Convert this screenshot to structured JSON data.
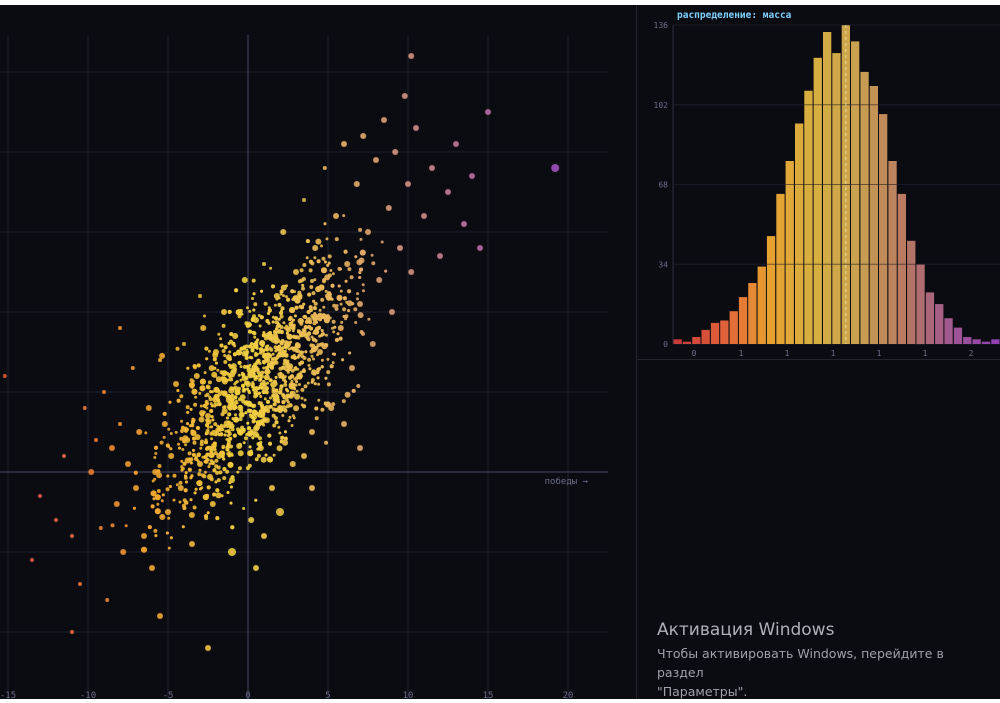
{
  "chart_data": [
    {
      "type": "scatter",
      "x_axis_label": "победы →",
      "x_ticks": [
        -15,
        -10,
        -5,
        0,
        5,
        10,
        15,
        20
      ],
      "xlim": [
        -15.5,
        22.5
      ],
      "ylim": [
        -14,
        27
      ],
      "grid": true,
      "color_scale": [
        "#e0563a",
        "#f0a030",
        "#f0d040",
        "#e8b060",
        "#c07898",
        "#a050c0"
      ],
      "points": [
        [
          -13.5,
          -5.5,
          2
        ],
        [
          -15.2,
          6,
          2
        ],
        [
          -13,
          -1.5,
          2
        ],
        [
          -12,
          -3,
          2
        ],
        [
          -11.5,
          1,
          2
        ],
        [
          -11,
          -4,
          2
        ],
        [
          -10.5,
          -7,
          2
        ],
        [
          -10.2,
          4,
          2
        ],
        [
          -9.8,
          0,
          3
        ],
        [
          -9.5,
          2,
          2
        ],
        [
          -9.2,
          -3.5,
          2
        ],
        [
          -9,
          5,
          2
        ],
        [
          -8.8,
          -8,
          2
        ],
        [
          -8.5,
          1.5,
          3
        ],
        [
          -8.2,
          -2,
          3
        ],
        [
          -8,
          3,
          2
        ],
        [
          -7.8,
          -5,
          3
        ],
        [
          -7.5,
          0.5,
          3
        ],
        [
          -7.2,
          6.5,
          2
        ],
        [
          -7,
          -1,
          3
        ],
        [
          -6.8,
          2.5,
          3
        ],
        [
          -6.5,
          -4,
          3
        ],
        [
          -6.2,
          4,
          3
        ],
        [
          -6,
          -6,
          3
        ],
        [
          -5.8,
          0,
          3
        ],
        [
          -5.5,
          7,
          2
        ],
        [
          -5.2,
          3,
          3
        ],
        [
          -5,
          -2.5,
          3
        ],
        [
          -4.8,
          1,
          3
        ],
        [
          -4.5,
          5.5,
          3
        ],
        [
          -4.2,
          -1,
          3
        ],
        [
          -4,
          8,
          2
        ],
        [
          -3.8,
          2,
          3
        ],
        [
          -3.5,
          -4.5,
          3
        ],
        [
          -3.2,
          6,
          3
        ],
        [
          -3,
          0.5,
          3
        ],
        [
          -2.8,
          9,
          3
        ],
        [
          -2.5,
          3.5,
          3
        ],
        [
          -2.2,
          -2,
          3
        ],
        [
          -2,
          7.5,
          3
        ],
        [
          -1.8,
          1,
          3
        ],
        [
          -1.5,
          10,
          3
        ],
        [
          -1.2,
          4.5,
          3
        ],
        [
          -1,
          -0.5,
          3
        ],
        [
          -0.8,
          8.5,
          3
        ],
        [
          -0.5,
          2.5,
          3
        ],
        [
          -0.2,
          12,
          3
        ],
        [
          0,
          5.5,
          3
        ],
        [
          0.2,
          -3,
          3
        ],
        [
          0.5,
          9.5,
          3
        ],
        [
          0.8,
          1.5,
          3
        ],
        [
          1,
          13,
          2
        ],
        [
          1.2,
          7,
          3
        ],
        [
          1.5,
          -1,
          3
        ],
        [
          1.8,
          11,
          3
        ],
        [
          2,
          4,
          3
        ],
        [
          2.2,
          15,
          3
        ],
        [
          2.5,
          8,
          3
        ],
        [
          2.8,
          0.5,
          3
        ],
        [
          3,
          12.5,
          3
        ],
        [
          3.2,
          6,
          3
        ],
        [
          3.5,
          17,
          2
        ],
        [
          3.8,
          9.5,
          3
        ],
        [
          4,
          2.5,
          3
        ],
        [
          4.2,
          14,
          3
        ],
        [
          4.5,
          7.5,
          3
        ],
        [
          4.8,
          19,
          2
        ],
        [
          5,
          11,
          3
        ],
        [
          5.2,
          4,
          3
        ],
        [
          5.5,
          16,
          3
        ],
        [
          5.8,
          9,
          3
        ],
        [
          6,
          20.5,
          3
        ],
        [
          6.2,
          13,
          3
        ],
        [
          6.5,
          6.5,
          3
        ],
        [
          6.8,
          18,
          3
        ],
        [
          7,
          10.5,
          3
        ],
        [
          7.2,
          21,
          3
        ],
        [
          7.5,
          15,
          3
        ],
        [
          7.8,
          8,
          3
        ],
        [
          8,
          19.5,
          3
        ],
        [
          8.2,
          12,
          3
        ],
        [
          8.5,
          22,
          3
        ],
        [
          8.8,
          16.5,
          3
        ],
        [
          9,
          10,
          3
        ],
        [
          9.2,
          20,
          3
        ],
        [
          9.5,
          14,
          3
        ],
        [
          9.8,
          23.5,
          3
        ],
        [
          10,
          18,
          3
        ],
        [
          10.2,
          12.5,
          3
        ],
        [
          10.5,
          21.5,
          3
        ],
        [
          11,
          16,
          3
        ],
        [
          11.5,
          19,
          3
        ],
        [
          12,
          13.5,
          3
        ],
        [
          12.5,
          17.5,
          3
        ],
        [
          13,
          20.5,
          3
        ],
        [
          13.5,
          15.5,
          3
        ],
        [
          14,
          18.5,
          3
        ],
        [
          14.5,
          14,
          3
        ],
        [
          15,
          22.5,
          3
        ],
        [
          19.2,
          19,
          4
        ],
        [
          10.2,
          26,
          3
        ],
        [
          -2.5,
          -11,
          3
        ],
        [
          -5.5,
          -9,
          3
        ],
        [
          -11,
          -10,
          2
        ],
        [
          -8,
          9,
          2
        ],
        [
          -3,
          11,
          2
        ],
        [
          0.5,
          -6,
          3
        ],
        [
          2,
          -2.5,
          4
        ],
        [
          3.5,
          1,
          3
        ],
        [
          4,
          -1,
          3
        ],
        [
          6,
          3,
          3
        ],
        [
          7,
          1.5,
          3
        ],
        [
          -1,
          -5,
          4
        ],
        [
          1,
          -4,
          3
        ]
      ]
    },
    {
      "type": "bar",
      "title": "распределение: масса",
      "y_ticks": [
        0,
        34,
        68,
        102,
        136
      ],
      "x_tick_labels": [
        "0",
        "1",
        "1",
        "1",
        "1",
        "1",
        "2"
      ],
      "values": [
        2,
        1,
        3,
        6,
        9,
        10,
        14,
        20,
        26,
        33,
        46,
        64,
        78,
        94,
        108,
        122,
        133,
        124,
        136,
        129,
        116,
        110,
        98,
        78,
        64,
        44,
        34,
        22,
        17,
        11,
        7,
        3,
        2,
        1,
        2
      ],
      "mean_line": true,
      "color_scale": [
        "#c83a3a",
        "#e0603a",
        "#e8a030",
        "#d8b040",
        "#c8a050",
        "#b87860",
        "#a05890",
        "#9040b0"
      ]
    }
  ],
  "watermark": {
    "title": "Активация Windows",
    "line1": "Чтобы активировать Windows, перейдите в раздел",
    "line2": "\"Параметры\"."
  }
}
